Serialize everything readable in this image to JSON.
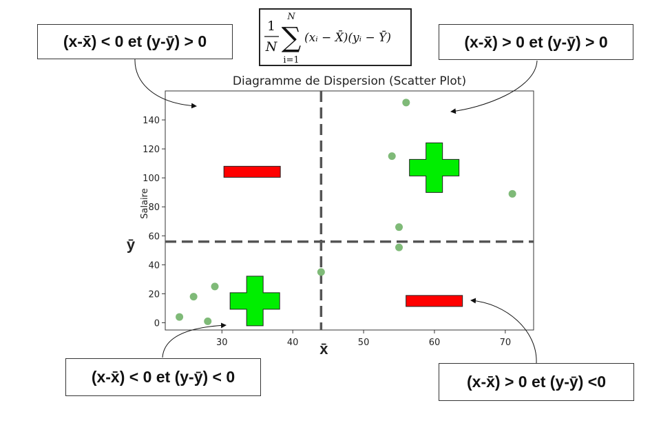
{
  "callouts": {
    "top_left": "(x-x̄) < 0 et (y-ȳ) > 0",
    "top_right": "(x-x̄) > 0 et (y-ȳ) > 0",
    "bottom_left": "(x-x̄) < 0 et (y-ȳ) < 0",
    "bottom_right": "(x-x̄) > 0 et (y-ȳ) <0"
  },
  "formula": {
    "frac_num": "1",
    "frac_den": "N",
    "sum": "∑",
    "upper": "N",
    "lower": "i=1",
    "body": "(xᵢ − X̄)(yᵢ − Ȳ)"
  },
  "chart_data": {
    "type": "scatter",
    "title": "Diagramme de Dispersion (Scatter Plot)",
    "xlabel": "",
    "ylabel": "Salaire",
    "xlim": [
      22,
      74
    ],
    "ylim": [
      -5,
      160
    ],
    "xticks": [
      30,
      40,
      50,
      60,
      70
    ],
    "yticks": [
      0,
      20,
      40,
      60,
      80,
      100,
      120,
      140
    ],
    "point_color": "#7fba78",
    "points": [
      {
        "x": 24,
        "y": 4
      },
      {
        "x": 26,
        "y": 18
      },
      {
        "x": 28,
        "y": 1
      },
      {
        "x": 29,
        "y": 25
      },
      {
        "x": 44,
        "y": 35
      },
      {
        "x": 54,
        "y": 115
      },
      {
        "x": 55,
        "y": 66
      },
      {
        "x": 55,
        "y": 52
      },
      {
        "x": 56,
        "y": 152
      },
      {
        "x": 71,
        "y": 89
      }
    ],
    "mean_x": 44,
    "mean_y": 56,
    "mean_x_label": "x̄",
    "mean_y_label": "ȳ",
    "quadrant_signs": [
      {
        "quadrant": "top-left",
        "sign": "-",
        "color": "#ff0000"
      },
      {
        "quadrant": "top-right",
        "sign": "+",
        "color": "#00ee00"
      },
      {
        "quadrant": "bottom-left",
        "sign": "+",
        "color": "#00ee00"
      },
      {
        "quadrant": "bottom-right",
        "sign": "-",
        "color": "#ff0000"
      }
    ]
  }
}
